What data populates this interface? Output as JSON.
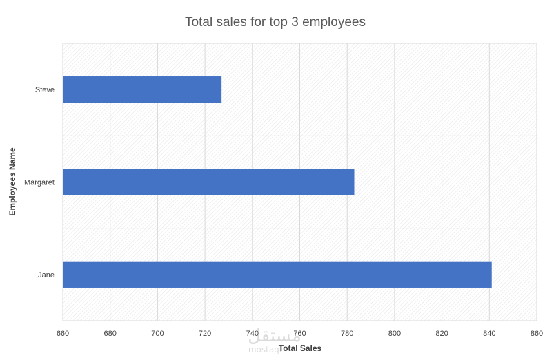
{
  "chart_data": {
    "type": "bar",
    "orientation": "horizontal",
    "title": "Total sales for top 3 employees",
    "xlabel": "Total Sales",
    "ylabel": "Employees Name",
    "categories": [
      "Steve",
      "Margaret",
      "Jane"
    ],
    "values": [
      727,
      783,
      841
    ],
    "xlim": [
      660,
      860
    ],
    "xticks": [
      "660",
      "680",
      "700",
      "720",
      "740",
      "760",
      "780",
      "800",
      "820",
      "840",
      "860"
    ],
    "grid": true,
    "bar_color": "#4472c4",
    "gridline_color": "#d9d9d9"
  },
  "watermark": {
    "arabic": "مستقل",
    "latin": "mostaql"
  }
}
